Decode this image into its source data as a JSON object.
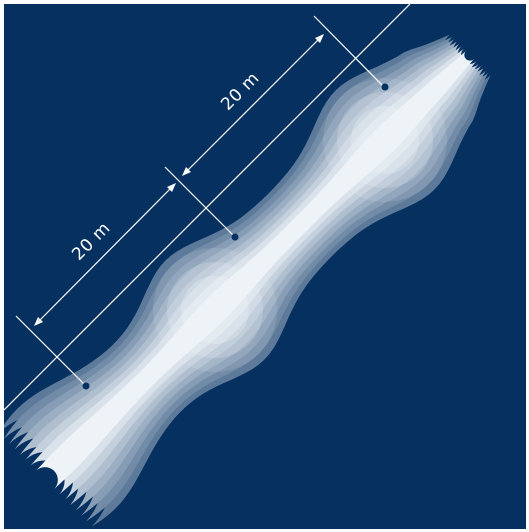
{
  "diagram": {
    "spacing_labels": [
      "20 m",
      "20 m"
    ],
    "colors": {
      "background": "#05305f",
      "plume_light": "#eef3f8",
      "plume_dark": "#5d7a9a",
      "annotation": "#ffffff",
      "source_dot": "#05305f"
    },
    "source_count": 3
  }
}
